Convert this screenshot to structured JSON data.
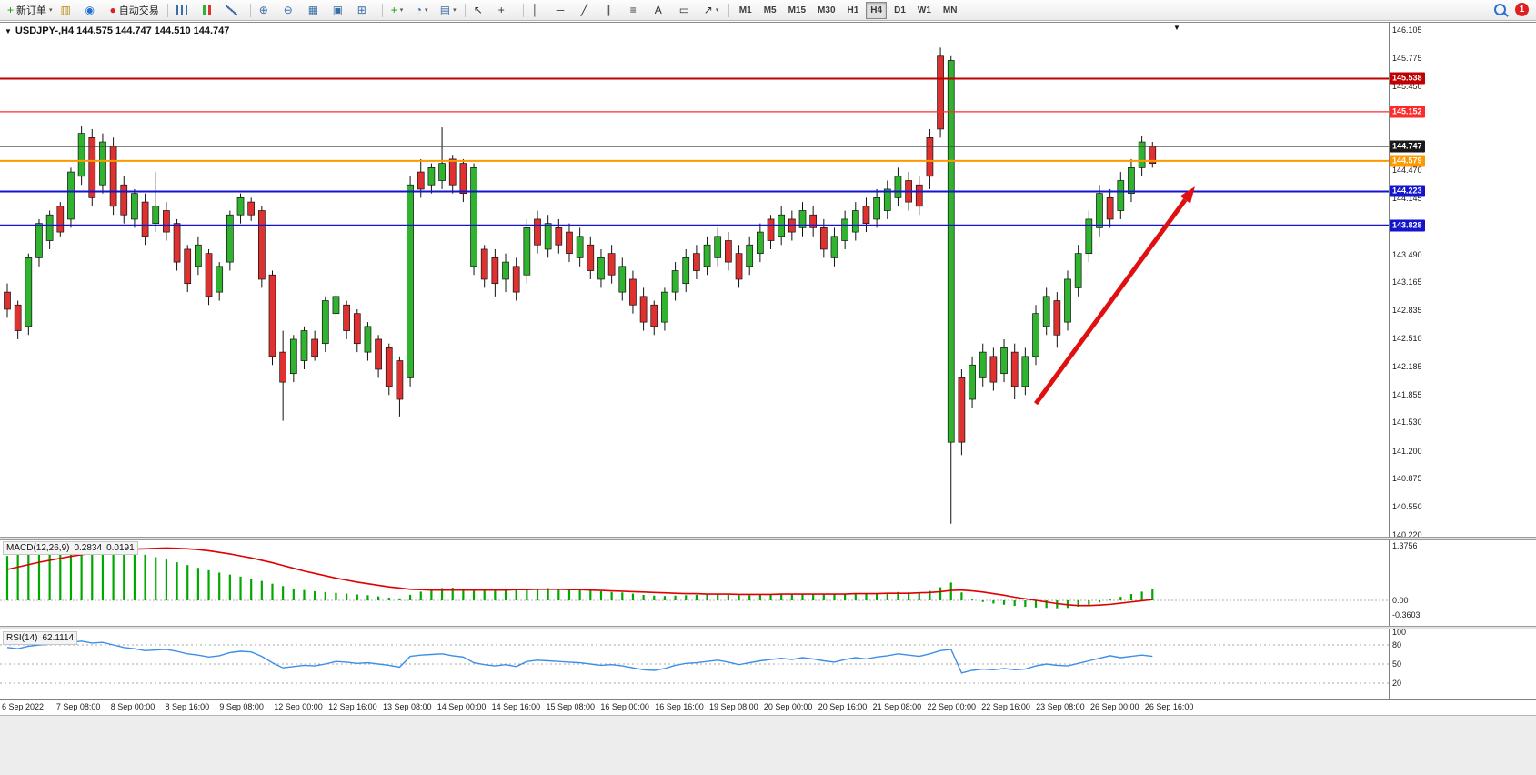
{
  "colors": {
    "up": "#30b430",
    "down": "#e03131",
    "outline": "#111111",
    "macd_hist": "#00a800",
    "macd_signal": "#e00000",
    "rsi_line": "#3b8fe8",
    "arrow": "#e01010",
    "axis": "#808080"
  },
  "overlay": {
    "notification_count": "1",
    "mini_triangle": "▼"
  },
  "toolbar": {
    "groups": [
      [
        {
          "n": "new-order",
          "g": "+",
          "c": "#0f9d0f",
          "label": "新订单",
          "dd": true
        },
        {
          "n": "charts",
          "g": "▥",
          "c": "#b8860b"
        },
        {
          "n": "profiles",
          "g": "◉",
          "c": "#1e6fd0"
        },
        {
          "n": "autotrading",
          "g": "●",
          "c": "#d42525",
          "label": "自动交易"
        }
      ],
      [
        {
          "n": "chart-bars",
          "css": "bars"
        },
        {
          "n": "chart-candles",
          "css": "candles"
        },
        {
          "n": "chart-line",
          "css": "line"
        }
      ],
      [
        {
          "n": "zoom-in",
          "g": "⊕",
          "c": "#3a6ea5"
        },
        {
          "n": "zoom-out",
          "g": "⊖",
          "c": "#3a6ea5"
        },
        {
          "n": "tile-windows",
          "g": "▦",
          "c": "#3a6ea5"
        },
        {
          "n": "arrange-windows",
          "g": "▣",
          "c": "#3a6ea5"
        },
        {
          "n": "chart-shift",
          "g": "⊞",
          "c": "#3a6ea5"
        }
      ],
      [
        {
          "n": "indicators",
          "g": "+",
          "c": "#0f9d0f",
          "dd": true
        },
        {
          "n": "periods",
          "g": "◔",
          "c": "#3a6ea5",
          "dd": true
        },
        {
          "n": "templates",
          "g": "▤",
          "c": "#3a6ea5",
          "dd": true
        }
      ],
      [
        {
          "n": "cursor",
          "g": "↖",
          "c": "#333333"
        },
        {
          "n": "crosshair",
          "g": "+",
          "c": "#333333"
        }
      ],
      [
        {
          "n": "vertical-line",
          "g": "│",
          "c": "#333333"
        },
        {
          "n": "horizontal-line",
          "g": "─",
          "c": "#333333"
        },
        {
          "n": "trendline",
          "g": "╱",
          "c": "#333333"
        },
        {
          "n": "channel",
          "g": "∥",
          "c": "#333333"
        },
        {
          "n": "fibonacci",
          "g": "≡",
          "c": "#333333"
        },
        {
          "n": "text",
          "g": "A",
          "c": "#333333"
        },
        {
          "n": "text-label",
          "g": "▭",
          "c": "#333333"
        },
        {
          "n": "arrows",
          "g": "↗",
          "c": "#333333",
          "dd": true
        }
      ]
    ],
    "timeframes": [
      "M1",
      "M5",
      "M15",
      "M30",
      "H1",
      "H4",
      "D1",
      "W1",
      "MN"
    ],
    "active_timeframe": "H4"
  },
  "chart_data": {
    "type": "candlestick",
    "symbol": "USDJPY-",
    "period": "H4",
    "title": {
      "collapse_icon": "▼",
      "text": "USDJPY-,H4 144.575 144.747 144.510 144.747"
    },
    "price_axis": {
      "max": 146.105,
      "min": 140.22,
      "labels": [
        "146.105",
        "145.775",
        "145.450",
        "144.470",
        "144.145",
        "143.490",
        "143.165",
        "142.835",
        "142.510",
        "142.185",
        "141.855",
        "141.530",
        "141.200",
        "140.875",
        "140.550",
        "140.220"
      ]
    },
    "time_labels": [
      "6 Sep 2022",
      "7 Sep 08:00",
      "8 Sep 00:00",
      "8 Sep 16:00",
      "9 Sep 08:00",
      "12 Sep 00:00",
      "12 Sep 16:00",
      "13 Sep 08:00",
      "14 Sep 00:00",
      "14 Sep 16:00",
      "15 Sep 08:00",
      "16 Sep 00:00",
      "16 Sep 16:00",
      "19 Sep 08:00",
      "20 Sep 00:00",
      "20 Sep 16:00",
      "21 Sep 08:00",
      "22 Sep 00:00",
      "22 Sep 16:00",
      "23 Sep 08:00",
      "26 Sep 00:00",
      "26 Sep 16:00"
    ],
    "hlines": [
      {
        "label": "145.538",
        "price": 145.538,
        "color": "#c00000",
        "width": 2
      },
      {
        "label": "145.152",
        "price": 145.152,
        "color": "#ff2a2a",
        "width": 1.2
      },
      {
        "label": "144.747",
        "price": 144.747,
        "color": "#3c3c3c",
        "width": 1,
        "badge": "#1a1a1a"
      },
      {
        "label": "144.579",
        "price": 144.579,
        "color": "#ff9900",
        "width": 2
      },
      {
        "label": "144.223",
        "price": 144.223,
        "color": "#1414cc",
        "width": 2
      },
      {
        "label": "143.828",
        "price": 143.828,
        "color": "#1414cc",
        "width": 2
      }
    ],
    "arrow": {
      "from_index": 97,
      "from_price": 141.75,
      "to_index": 112,
      "to_price": 144.28
    },
    "candles": [
      [
        143.15,
        142.75,
        143.05,
        142.85,
        "r"
      ],
      [
        142.95,
        142.5,
        142.9,
        142.6,
        "r"
      ],
      [
        143.5,
        142.55,
        143.45,
        142.65,
        "g"
      ],
      [
        143.9,
        143.35,
        143.85,
        143.45,
        "g"
      ],
      [
        144.0,
        143.55,
        143.95,
        143.65,
        "g"
      ],
      [
        144.1,
        143.7,
        144.05,
        143.75,
        "r"
      ],
      [
        144.5,
        143.8,
        144.45,
        143.9,
        "g"
      ],
      [
        144.99,
        144.3,
        144.9,
        144.4,
        "g"
      ],
      [
        144.95,
        144.05,
        144.85,
        144.15,
        "r"
      ],
      [
        144.9,
        144.2,
        144.8,
        144.3,
        "g"
      ],
      [
        144.85,
        143.95,
        144.75,
        144.05,
        "r"
      ],
      [
        144.4,
        143.85,
        144.3,
        143.95,
        "r"
      ],
      [
        144.25,
        143.8,
        144.2,
        143.9,
        "g"
      ],
      [
        144.2,
        143.6,
        144.1,
        143.7,
        "r"
      ],
      [
        144.45,
        143.75,
        144.05,
        143.85,
        "g"
      ],
      [
        144.1,
        143.65,
        144.0,
        143.75,
        "r"
      ],
      [
        143.9,
        143.3,
        143.85,
        143.4,
        "r"
      ],
      [
        143.6,
        143.05,
        143.55,
        143.15,
        "r"
      ],
      [
        143.7,
        143.25,
        143.6,
        143.35,
        "g"
      ],
      [
        143.55,
        142.9,
        143.5,
        143.0,
        "r"
      ],
      [
        143.4,
        142.95,
        143.35,
        143.05,
        "g"
      ],
      [
        144.0,
        143.3,
        143.95,
        143.4,
        "g"
      ],
      [
        144.2,
        143.85,
        144.15,
        143.95,
        "g"
      ],
      [
        144.15,
        143.88,
        144.1,
        143.95,
        "r"
      ],
      [
        144.05,
        143.1,
        144.0,
        143.2,
        "r"
      ],
      [
        143.3,
        142.2,
        143.25,
        142.3,
        "r"
      ],
      [
        142.6,
        141.55,
        142.35,
        142.0,
        "r"
      ],
      [
        142.55,
        142.0,
        142.5,
        142.1,
        "g"
      ],
      [
        142.65,
        142.15,
        142.6,
        142.25,
        "g"
      ],
      [
        142.6,
        142.25,
        142.5,
        142.3,
        "r"
      ],
      [
        143.0,
        142.35,
        142.95,
        142.45,
        "g"
      ],
      [
        143.05,
        142.7,
        143.0,
        142.8,
        "g"
      ],
      [
        142.95,
        142.5,
        142.9,
        142.6,
        "r"
      ],
      [
        142.85,
        142.35,
        142.8,
        142.45,
        "r"
      ],
      [
        142.7,
        142.25,
        142.65,
        142.35,
        "g"
      ],
      [
        142.55,
        142.05,
        142.5,
        142.15,
        "r"
      ],
      [
        142.45,
        141.85,
        142.4,
        141.95,
        "r"
      ],
      [
        142.3,
        141.6,
        142.25,
        141.8,
        "r"
      ],
      [
        144.4,
        141.95,
        144.3,
        142.05,
        "g"
      ],
      [
        144.6,
        144.15,
        144.45,
        144.25,
        "r"
      ],
      [
        144.55,
        144.2,
        144.5,
        144.3,
        "g"
      ],
      [
        144.97,
        144.25,
        144.55,
        144.35,
        "g"
      ],
      [
        144.65,
        144.2,
        144.6,
        144.3,
        "r"
      ],
      [
        144.6,
        144.1,
        144.55,
        144.2,
        "r"
      ],
      [
        144.55,
        143.25,
        144.5,
        143.35,
        "g"
      ],
      [
        143.6,
        143.1,
        143.55,
        143.2,
        "r"
      ],
      [
        143.55,
        143.0,
        143.45,
        143.15,
        "r"
      ],
      [
        143.5,
        143.05,
        143.4,
        143.2,
        "g"
      ],
      [
        143.45,
        142.95,
        143.35,
        143.05,
        "r"
      ],
      [
        143.9,
        143.15,
        143.8,
        143.25,
        "g"
      ],
      [
        144.0,
        143.5,
        143.9,
        143.6,
        "r"
      ],
      [
        143.95,
        143.45,
        143.85,
        143.55,
        "g"
      ],
      [
        143.9,
        143.5,
        143.8,
        143.6,
        "r"
      ],
      [
        143.85,
        143.4,
        143.75,
        143.5,
        "r"
      ],
      [
        143.8,
        143.35,
        143.7,
        143.45,
        "g"
      ],
      [
        143.7,
        143.2,
        143.6,
        143.3,
        "r"
      ],
      [
        143.55,
        143.1,
        143.45,
        143.2,
        "g"
      ],
      [
        143.6,
        143.15,
        143.5,
        143.25,
        "r"
      ],
      [
        143.45,
        142.95,
        143.35,
        143.05,
        "g"
      ],
      [
        143.3,
        142.8,
        143.2,
        142.9,
        "r"
      ],
      [
        143.1,
        142.6,
        143.0,
        142.7,
        "r"
      ],
      [
        142.95,
        142.55,
        142.9,
        142.65,
        "r"
      ],
      [
        143.1,
        142.6,
        143.05,
        142.7,
        "g"
      ],
      [
        143.4,
        142.95,
        143.3,
        143.05,
        "g"
      ],
      [
        143.55,
        143.05,
        143.45,
        143.15,
        "g"
      ],
      [
        143.6,
        143.2,
        143.5,
        143.3,
        "r"
      ],
      [
        143.7,
        143.25,
        143.6,
        143.35,
        "g"
      ],
      [
        143.8,
        143.35,
        143.7,
        143.45,
        "g"
      ],
      [
        143.75,
        143.3,
        143.65,
        143.4,
        "r"
      ],
      [
        143.6,
        143.1,
        143.5,
        143.2,
        "r"
      ],
      [
        143.7,
        143.25,
        143.6,
        143.35,
        "g"
      ],
      [
        143.85,
        143.4,
        143.75,
        143.5,
        "g"
      ],
      [
        143.95,
        143.55,
        143.9,
        143.65,
        "r"
      ],
      [
        144.05,
        143.6,
        143.95,
        143.7,
        "g"
      ],
      [
        144.0,
        143.65,
        143.9,
        143.75,
        "r"
      ],
      [
        144.1,
        143.7,
        144.0,
        143.8,
        "g"
      ],
      [
        144.05,
        143.7,
        143.95,
        143.8,
        "r"
      ],
      [
        143.9,
        143.45,
        143.8,
        143.55,
        "r"
      ],
      [
        143.8,
        143.35,
        143.7,
        143.45,
        "g"
      ],
      [
        144.0,
        143.55,
        143.9,
        143.65,
        "g"
      ],
      [
        144.1,
        143.65,
        144.0,
        143.75,
        "g"
      ],
      [
        144.15,
        143.75,
        144.05,
        143.85,
        "r"
      ],
      [
        144.25,
        143.8,
        144.15,
        143.9,
        "g"
      ],
      [
        144.35,
        143.9,
        144.25,
        144.0,
        "g"
      ],
      [
        144.5,
        144.05,
        144.4,
        144.15,
        "g"
      ],
      [
        144.45,
        144.0,
        144.35,
        144.1,
        "r"
      ],
      [
        144.4,
        143.95,
        144.3,
        144.05,
        "r"
      ],
      [
        144.95,
        144.25,
        144.85,
        144.4,
        "r"
      ],
      [
        145.9,
        144.85,
        145.8,
        144.95,
        "r"
      ],
      [
        145.8,
        140.35,
        145.75,
        141.3,
        "g"
      ],
      [
        142.15,
        141.15,
        142.05,
        141.3,
        "r"
      ],
      [
        142.3,
        141.7,
        142.2,
        141.8,
        "g"
      ],
      [
        142.45,
        141.95,
        142.35,
        142.05,
        "g"
      ],
      [
        142.4,
        141.9,
        142.3,
        142.0,
        "r"
      ],
      [
        142.5,
        142.0,
        142.4,
        142.1,
        "g"
      ],
      [
        142.45,
        141.8,
        142.35,
        141.95,
        "r"
      ],
      [
        142.4,
        141.85,
        142.3,
        141.95,
        "g"
      ],
      [
        142.9,
        142.2,
        142.8,
        142.3,
        "g"
      ],
      [
        143.1,
        142.55,
        143.0,
        142.65,
        "g"
      ],
      [
        143.05,
        142.4,
        142.95,
        142.55,
        "r"
      ],
      [
        143.3,
        142.6,
        143.2,
        142.7,
        "g"
      ],
      [
        143.6,
        143.0,
        143.5,
        143.1,
        "g"
      ],
      [
        144.0,
        143.4,
        143.9,
        143.5,
        "g"
      ],
      [
        144.3,
        143.7,
        144.2,
        143.8,
        "g"
      ],
      [
        144.25,
        143.8,
        144.15,
        143.9,
        "r"
      ],
      [
        144.45,
        143.9,
        144.35,
        144.0,
        "g"
      ],
      [
        144.6,
        144.1,
        144.5,
        144.2,
        "g"
      ],
      [
        144.87,
        144.4,
        144.8,
        144.5,
        "g"
      ],
      [
        144.8,
        144.5,
        144.75,
        144.55,
        "r"
      ]
    ],
    "macd": {
      "label": "MACD(12,26,9)",
      "value_1": "0.2834",
      "value_2": "0.0191",
      "axis_labels": [
        "1.3756",
        "0.00",
        "-0.3603"
      ],
      "max": 1.3756,
      "min": -0.3603,
      "hist": [
        1.12,
        1.18,
        1.22,
        1.26,
        1.29,
        1.31,
        1.33,
        1.35,
        1.34,
        1.32,
        1.29,
        1.25,
        1.2,
        1.15,
        1.09,
        1.03,
        0.96,
        0.89,
        0.82,
        0.76,
        0.7,
        0.65,
        0.6,
        0.55,
        0.49,
        0.42,
        0.36,
        0.3,
        0.26,
        0.23,
        0.21,
        0.19,
        0.17,
        0.15,
        0.13,
        0.1,
        0.07,
        0.05,
        0.14,
        0.22,
        0.27,
        0.31,
        0.32,
        0.3,
        0.28,
        0.25,
        0.24,
        0.25,
        0.26,
        0.28,
        0.3,
        0.31,
        0.3,
        0.29,
        0.27,
        0.25,
        0.23,
        0.21,
        0.2,
        0.17,
        0.14,
        0.12,
        0.11,
        0.12,
        0.13,
        0.14,
        0.15,
        0.15,
        0.14,
        0.13,
        0.13,
        0.14,
        0.15,
        0.15,
        0.16,
        0.16,
        0.16,
        0.15,
        0.15,
        0.16,
        0.17,
        0.17,
        0.18,
        0.19,
        0.21,
        0.2,
        0.19,
        0.24,
        0.33,
        0.45,
        0.2,
        0.02,
        -0.04,
        -0.08,
        -0.11,
        -0.14,
        -0.16,
        -0.18,
        -0.19,
        -0.2,
        -0.19,
        -0.16,
        -0.11,
        -0.05,
        0.02,
        0.09,
        0.16,
        0.22,
        0.28
      ],
      "signal": [
        0.78,
        0.84,
        0.9,
        0.96,
        1.01,
        1.06,
        1.11,
        1.15,
        1.19,
        1.22,
        1.25,
        1.27,
        1.29,
        1.3,
        1.31,
        1.32,
        1.31,
        1.3,
        1.28,
        1.25,
        1.21,
        1.17,
        1.12,
        1.07,
        1.01,
        0.95,
        0.88,
        0.81,
        0.74,
        0.68,
        0.62,
        0.56,
        0.51,
        0.46,
        0.42,
        0.38,
        0.34,
        0.31,
        0.28,
        0.27,
        0.26,
        0.26,
        0.26,
        0.26,
        0.26,
        0.26,
        0.26,
        0.26,
        0.27,
        0.27,
        0.28,
        0.28,
        0.28,
        0.27,
        0.27,
        0.26,
        0.25,
        0.24,
        0.23,
        0.22,
        0.21,
        0.2,
        0.19,
        0.18,
        0.17,
        0.17,
        0.16,
        0.16,
        0.16,
        0.15,
        0.15,
        0.15,
        0.15,
        0.16,
        0.16,
        0.16,
        0.16,
        0.16,
        0.16,
        0.16,
        0.17,
        0.17,
        0.17,
        0.18,
        0.18,
        0.18,
        0.19,
        0.2,
        0.22,
        0.25,
        0.26,
        0.24,
        0.21,
        0.17,
        0.13,
        0.08,
        0.04,
        0.0,
        -0.04,
        -0.08,
        -0.11,
        -0.13,
        -0.13,
        -0.12,
        -0.1,
        -0.07,
        -0.04,
        -0.01,
        0.02
      ]
    },
    "rsi": {
      "label": "RSI(14)",
      "value": "62.1114",
      "axis_labels": [
        "100",
        "80",
        "50",
        "20"
      ],
      "levels": [
        80,
        50,
        20
      ],
      "values": [
        76,
        74,
        78,
        80,
        81,
        82,
        84,
        86,
        83,
        84,
        80,
        76,
        74,
        71,
        72,
        73,
        70,
        66,
        64,
        61,
        63,
        68,
        70,
        69,
        62,
        52,
        44,
        46,
        48,
        47,
        50,
        54,
        53,
        51,
        52,
        50,
        48,
        45,
        62,
        64,
        65,
        66,
        63,
        61,
        52,
        49,
        47,
        49,
        46,
        54,
        56,
        55,
        54,
        53,
        52,
        50,
        48,
        49,
        47,
        44,
        41,
        40,
        43,
        48,
        51,
        52,
        54,
        56,
        53,
        49,
        52,
        55,
        57,
        59,
        57,
        60,
        58,
        55,
        53,
        57,
        60,
        58,
        61,
        63,
        66,
        64,
        62,
        66,
        71,
        73,
        36,
        40,
        42,
        41,
        43,
        41,
        42,
        47,
        50,
        48,
        47,
        51,
        55,
        59,
        63,
        60,
        62,
        64,
        62.11
      ]
    }
  }
}
